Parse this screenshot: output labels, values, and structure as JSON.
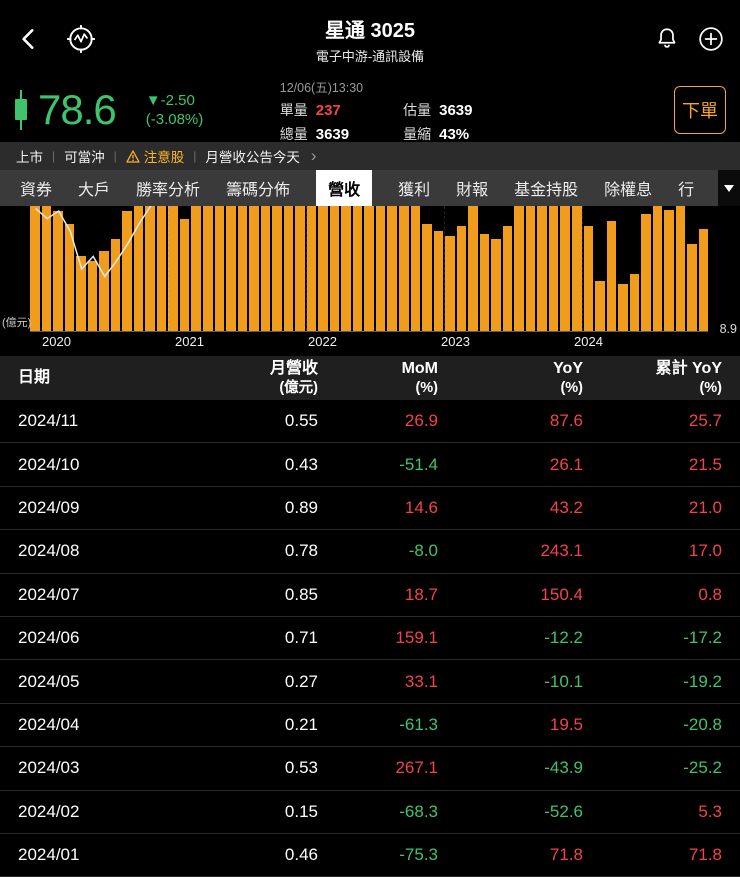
{
  "header": {
    "title": "星通 3025",
    "subtitle": "電子中游-通訊設備"
  },
  "quote": {
    "price": "78.6",
    "change": "▼-2.50",
    "change_pct": "(-3.08%)",
    "timestamp": "12/06(五)13:30",
    "unit_volume_label": "單量",
    "unit_volume": "237",
    "total_volume_label": "總量",
    "total_volume": "3639",
    "estimated_volume_label": "估量",
    "estimated_volume": "3639",
    "volume_shrink_label": "量縮",
    "volume_shrink": "43%",
    "order_button_label": "下單"
  },
  "tags": {
    "items": [
      {
        "label": "上市",
        "warning": false
      },
      {
        "label": "可當沖",
        "warning": false
      },
      {
        "label": "注意股",
        "warning": true
      },
      {
        "label": "月營收公告今天",
        "warning": false
      }
    ],
    "chevron": "›"
  },
  "tabs": [
    {
      "label": "資券",
      "active": false
    },
    {
      "label": "大戶",
      "active": false
    },
    {
      "label": "勝率分析",
      "active": false
    },
    {
      "label": "籌碼分佈",
      "active": false
    },
    {
      "label": "營收",
      "active": true
    },
    {
      "label": "獲利",
      "active": false
    },
    {
      "label": "財報",
      "active": false
    },
    {
      "label": "基金持股",
      "active": false
    },
    {
      "label": "除權息",
      "active": false
    },
    {
      "label": "行",
      "active": false
    }
  ],
  "chart_data": {
    "type": "bar",
    "title": "月營收",
    "ylabel": "(億元)",
    "right_axis_value": "8.9",
    "x_range": "2020/01 – 2024/11",
    "xticks": [
      "2020",
      "2021",
      "2022",
      "2023",
      "2024"
    ],
    "bar_color": "#f09d1e",
    "grid": "vertical-dashed-year-boundaries",
    "values_pct": [
      100,
      100,
      96,
      86,
      60,
      56,
      64,
      74,
      96,
      100,
      100,
      100,
      100,
      90,
      100,
      100,
      100,
      100,
      100,
      100,
      100,
      100,
      100,
      100,
      100,
      100,
      100,
      100,
      100,
      100,
      100,
      100,
      100,
      100,
      86,
      80,
      76,
      84,
      100,
      78,
      74,
      84,
      100,
      100,
      100,
      100,
      100,
      100,
      84,
      40,
      88,
      38,
      46,
      94,
      100,
      97,
      100,
      70,
      82
    ],
    "line_pct": [
      [
        0,
        98
      ],
      [
        1,
        90
      ],
      [
        2,
        96
      ],
      [
        3,
        80
      ],
      [
        4,
        50
      ],
      [
        5,
        60
      ],
      [
        6,
        44
      ],
      [
        7,
        56
      ],
      [
        8,
        70
      ],
      [
        9,
        86
      ],
      [
        10,
        100
      ],
      [
        11,
        108
      ]
    ]
  },
  "table": {
    "headers": [
      {
        "l1": "日期",
        "l2": ""
      },
      {
        "l1": "月營收",
        "l2": "(億元)"
      },
      {
        "l1": "MoM",
        "l2": "(%)"
      },
      {
        "l1": "YoY",
        "l2": "(%)"
      },
      {
        "l1": "累計 YoY",
        "l2": "(%)"
      }
    ],
    "rows": [
      {
        "date": "2024/11",
        "revenue": "0.55",
        "mom": "26.9",
        "yoy": "87.6",
        "cum_yoy": "25.7"
      },
      {
        "date": "2024/10",
        "revenue": "0.43",
        "mom": "-51.4",
        "yoy": "26.1",
        "cum_yoy": "21.5"
      },
      {
        "date": "2024/09",
        "revenue": "0.89",
        "mom": "14.6",
        "yoy": "43.2",
        "cum_yoy": "21.0"
      },
      {
        "date": "2024/08",
        "revenue": "0.78",
        "mom": "-8.0",
        "yoy": "243.1",
        "cum_yoy": "17.0"
      },
      {
        "date": "2024/07",
        "revenue": "0.85",
        "mom": "18.7",
        "yoy": "150.4",
        "cum_yoy": "0.8"
      },
      {
        "date": "2024/06",
        "revenue": "0.71",
        "mom": "159.1",
        "yoy": "-12.2",
        "cum_yoy": "-17.2"
      },
      {
        "date": "2024/05",
        "revenue": "0.27",
        "mom": "33.1",
        "yoy": "-10.1",
        "cum_yoy": "-19.2"
      },
      {
        "date": "2024/04",
        "revenue": "0.21",
        "mom": "-61.3",
        "yoy": "19.5",
        "cum_yoy": "-20.8"
      },
      {
        "date": "2024/03",
        "revenue": "0.53",
        "mom": "267.1",
        "yoy": "-43.9",
        "cum_yoy": "-25.2"
      },
      {
        "date": "2024/02",
        "revenue": "0.15",
        "mom": "-68.3",
        "yoy": "-52.6",
        "cum_yoy": "5.3"
      },
      {
        "date": "2024/01",
        "revenue": "0.46",
        "mom": "-75.3",
        "yoy": "71.8",
        "cum_yoy": "71.8"
      }
    ]
  }
}
